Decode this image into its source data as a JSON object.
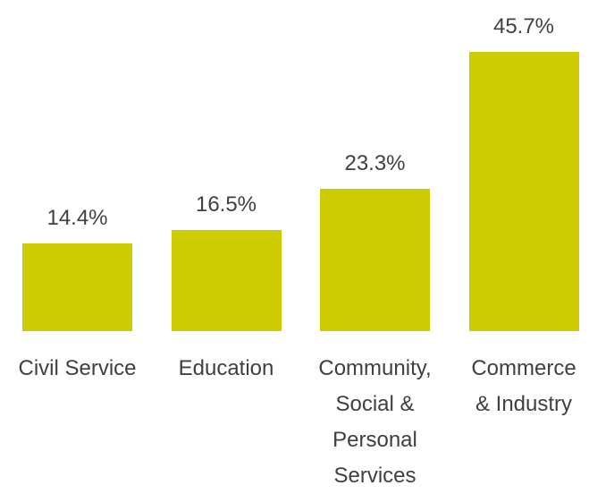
{
  "chart_data": {
    "type": "bar",
    "categories": [
      "Civil Service",
      "Education",
      "Community, Social & Personal Services",
      "Commerce & Industry"
    ],
    "values": [
      14.4,
      16.5,
      23.3,
      45.7
    ],
    "value_labels": [
      "14.4%",
      "16.5%",
      "23.3%",
      "45.7%"
    ],
    "color": "#cccc00"
  }
}
